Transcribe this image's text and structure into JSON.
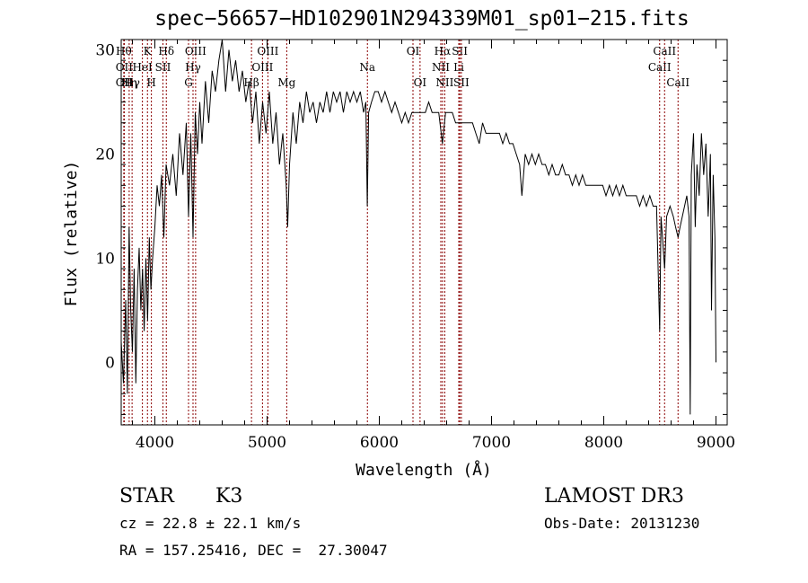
{
  "chart_data": {
    "type": "line",
    "title": "spec−56657−HD102901N294339M01_sp01−215.fits",
    "xlabel": "Wavelength (Å)",
    "ylabel": "Flux (relative)",
    "xlim": [
      3700,
      9100
    ],
    "ylim": [
      -6,
      31
    ],
    "xticks": [
      4000,
      5000,
      6000,
      7000,
      8000,
      9000
    ],
    "yticks": [
      0,
      10,
      20,
      30
    ],
    "grid": false,
    "line_color": "#000000",
    "marker_color": "#8b0000",
    "spectrum": [
      [
        3700,
        2
      ],
      [
        3720,
        -2
      ],
      [
        3740,
        6
      ],
      [
        3755,
        -3
      ],
      [
        3770,
        13
      ],
      [
        3785,
        5
      ],
      [
        3800,
        1
      ],
      [
        3815,
        9
      ],
      [
        3830,
        -2
      ],
      [
        3845,
        7
      ],
      [
        3860,
        11
      ],
      [
        3875,
        5
      ],
      [
        3890,
        9
      ],
      [
        3905,
        3
      ],
      [
        3920,
        10
      ],
      [
        3935,
        4
      ],
      [
        3950,
        12
      ],
      [
        3965,
        7
      ],
      [
        3980,
        10
      ],
      [
        4000,
        13
      ],
      [
        4020,
        17
      ],
      [
        4040,
        15
      ],
      [
        4060,
        18
      ],
      [
        4080,
        12
      ],
      [
        4100,
        19
      ],
      [
        4130,
        17
      ],
      [
        4160,
        20
      ],
      [
        4190,
        16
      ],
      [
        4220,
        22
      ],
      [
        4250,
        18
      ],
      [
        4280,
        23
      ],
      [
        4300,
        14
      ],
      [
        4320,
        22
      ],
      [
        4340,
        12
      ],
      [
        4360,
        24
      ],
      [
        4380,
        20
      ],
      [
        4400,
        25
      ],
      [
        4420,
        21
      ],
      [
        4450,
        27
      ],
      [
        4480,
        23
      ],
      [
        4510,
        28
      ],
      [
        4540,
        26
      ],
      [
        4570,
        29
      ],
      [
        4600,
        31
      ],
      [
        4630,
        26
      ],
      [
        4660,
        30
      ],
      [
        4690,
        27
      ],
      [
        4720,
        29
      ],
      [
        4750,
        26
      ],
      [
        4780,
        28
      ],
      [
        4810,
        25
      ],
      [
        4840,
        27
      ],
      [
        4870,
        23
      ],
      [
        4900,
        26
      ],
      [
        4930,
        21
      ],
      [
        4960,
        25
      ],
      [
        4990,
        22
      ],
      [
        5020,
        26
      ],
      [
        5050,
        21
      ],
      [
        5080,
        24
      ],
      [
        5110,
        19
      ],
      [
        5140,
        22
      ],
      [
        5170,
        17
      ],
      [
        5183,
        13
      ],
      [
        5200,
        19
      ],
      [
        5230,
        24
      ],
      [
        5260,
        21
      ],
      [
        5290,
        25
      ],
      [
        5320,
        23
      ],
      [
        5350,
        26
      ],
      [
        5380,
        24
      ],
      [
        5410,
        25
      ],
      [
        5440,
        23
      ],
      [
        5470,
        25
      ],
      [
        5500,
        24
      ],
      [
        5530,
        26
      ],
      [
        5560,
        24
      ],
      [
        5590,
        26
      ],
      [
        5620,
        25
      ],
      [
        5650,
        26
      ],
      [
        5680,
        24
      ],
      [
        5710,
        26
      ],
      [
        5740,
        25
      ],
      [
        5770,
        26
      ],
      [
        5800,
        25
      ],
      [
        5830,
        26
      ],
      [
        5860,
        24
      ],
      [
        5880,
        25
      ],
      [
        5893,
        15
      ],
      [
        5905,
        24
      ],
      [
        5930,
        25
      ],
      [
        5960,
        26
      ],
      [
        5990,
        26
      ],
      [
        6020,
        25
      ],
      [
        6050,
        26
      ],
      [
        6080,
        25
      ],
      [
        6110,
        24
      ],
      [
        6140,
        25
      ],
      [
        6170,
        24
      ],
      [
        6200,
        23
      ],
      [
        6230,
        24
      ],
      [
        6260,
        23
      ],
      [
        6290,
        24
      ],
      [
        6320,
        24
      ],
      [
        6350,
        24
      ],
      [
        6380,
        24
      ],
      [
        6410,
        24
      ],
      [
        6440,
        25
      ],
      [
        6470,
        24
      ],
      [
        6500,
        24
      ],
      [
        6530,
        24
      ],
      [
        6562,
        21
      ],
      [
        6590,
        24
      ],
      [
        6620,
        24
      ],
      [
        6650,
        24
      ],
      [
        6680,
        23
      ],
      [
        6710,
        23
      ],
      [
        6740,
        23
      ],
      [
        6770,
        23
      ],
      [
        6800,
        23
      ],
      [
        6830,
        23
      ],
      [
        6860,
        22
      ],
      [
        6890,
        21
      ],
      [
        6920,
        23
      ],
      [
        6950,
        22
      ],
      [
        6980,
        22
      ],
      [
        7010,
        22
      ],
      [
        7040,
        22
      ],
      [
        7070,
        22
      ],
      [
        7100,
        21
      ],
      [
        7130,
        22
      ],
      [
        7160,
        21
      ],
      [
        7190,
        21
      ],
      [
        7220,
        20
      ],
      [
        7250,
        19
      ],
      [
        7270,
        16
      ],
      [
        7300,
        20
      ],
      [
        7330,
        19
      ],
      [
        7360,
        20
      ],
      [
        7390,
        19
      ],
      [
        7420,
        20
      ],
      [
        7450,
        19
      ],
      [
        7480,
        19
      ],
      [
        7510,
        18
      ],
      [
        7540,
        19
      ],
      [
        7570,
        18
      ],
      [
        7600,
        18
      ],
      [
        7630,
        19
      ],
      [
        7660,
        18
      ],
      [
        7690,
        18
      ],
      [
        7720,
        17
      ],
      [
        7750,
        18
      ],
      [
        7780,
        17
      ],
      [
        7810,
        18
      ],
      [
        7840,
        17
      ],
      [
        7870,
        17
      ],
      [
        7900,
        17
      ],
      [
        7930,
        17
      ],
      [
        7960,
        17
      ],
      [
        7990,
        17
      ],
      [
        8020,
        16
      ],
      [
        8050,
        17
      ],
      [
        8080,
        16
      ],
      [
        8110,
        17
      ],
      [
        8140,
        16
      ],
      [
        8170,
        17
      ],
      [
        8200,
        16
      ],
      [
        8230,
        16
      ],
      [
        8260,
        16
      ],
      [
        8290,
        16
      ],
      [
        8320,
        15
      ],
      [
        8350,
        16
      ],
      [
        8380,
        15
      ],
      [
        8410,
        16
      ],
      [
        8440,
        15
      ],
      [
        8470,
        15
      ],
      [
        8498,
        3
      ],
      [
        8510,
        14
      ],
      [
        8542,
        9
      ],
      [
        8560,
        14
      ],
      [
        8590,
        15
      ],
      [
        8620,
        14
      ],
      [
        8640,
        13
      ],
      [
        8662,
        12
      ],
      [
        8680,
        13
      ],
      [
        8700,
        14
      ],
      [
        8720,
        15
      ],
      [
        8740,
        16
      ],
      [
        8760,
        14
      ],
      [
        8770,
        -5
      ],
      [
        8780,
        18
      ],
      [
        8800,
        22
      ],
      [
        8815,
        13
      ],
      [
        8830,
        19
      ],
      [
        8850,
        16
      ],
      [
        8870,
        22
      ],
      [
        8890,
        18
      ],
      [
        8910,
        21
      ],
      [
        8930,
        14
      ],
      [
        8950,
        20
      ],
      [
        8960,
        5
      ],
      [
        8975,
        18
      ],
      [
        8990,
        12
      ],
      [
        9000,
        0
      ]
    ],
    "line_markers": [
      {
        "w": 3723,
        "label": "Hθ",
        "row": 0
      },
      {
        "w": 3727,
        "label": "OII",
        "row": 1
      },
      {
        "w": 3727,
        "label": "OII",
        "row": 2
      },
      {
        "w": 3771,
        "label": "Hη",
        "row": 2
      },
      {
        "w": 3797,
        "label": "Hγ",
        "row": 2
      },
      {
        "w": 3889,
        "label": "HeI",
        "row": 1
      },
      {
        "w": 3934,
        "label": "K",
        "row": 0
      },
      {
        "w": 3969,
        "label": "H",
        "row": 2
      },
      {
        "w": 4072,
        "label": "SII",
        "row": 1
      },
      {
        "w": 4102,
        "label": "Hδ",
        "row": 0
      },
      {
        "w": 4300,
        "label": "G",
        "row": 2
      },
      {
        "w": 4340,
        "label": "Hγ",
        "row": 1
      },
      {
        "w": 4363,
        "label": "OIII",
        "row": 0
      },
      {
        "w": 4861,
        "label": "Hβ",
        "row": 2
      },
      {
        "w": 4959,
        "label": "OIII",
        "row": 1
      },
      {
        "w": 5007,
        "label": "OIII",
        "row": 0
      },
      {
        "w": 5175,
        "label": "Mg",
        "row": 2
      },
      {
        "w": 5894,
        "label": "Na",
        "row": 1
      },
      {
        "w": 6300,
        "label": "OI",
        "row": 0
      },
      {
        "w": 6363,
        "label": "OI",
        "row": 2
      },
      {
        "w": 6548,
        "label": "NII",
        "row": 1
      },
      {
        "w": 6563,
        "label": "Hα",
        "row": 0
      },
      {
        "w": 6583,
        "label": "NII",
        "row": 2
      },
      {
        "w": 6708,
        "label": "Li",
        "row": 1
      },
      {
        "w": 6717,
        "label": "SII",
        "row": 0
      },
      {
        "w": 6731,
        "label": "SII",
        "row": 2
      },
      {
        "w": 8498,
        "label": "CaII",
        "row": 1
      },
      {
        "w": 8542,
        "label": "CaII",
        "row": 0
      },
      {
        "w": 8662,
        "label": "CaII",
        "row": 2
      }
    ]
  },
  "footer": {
    "class_type": "STAR",
    "subclass": "K3",
    "survey": "LAMOST DR3",
    "redshift": "cz = 22.8 ± 22.1 km/s",
    "obs_date": "Obs-Date: 20131230",
    "coords": "RA = 157.25416, DEC =  27.30047"
  }
}
